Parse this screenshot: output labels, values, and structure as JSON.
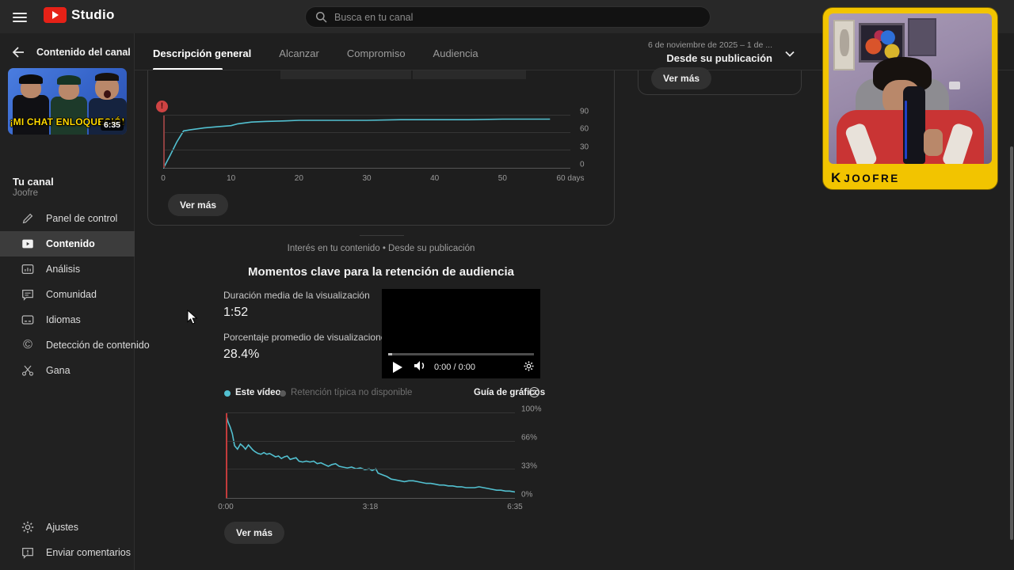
{
  "topbar": {
    "brand": "Studio",
    "search_placeholder": "Busca en tu canal"
  },
  "sidebar": {
    "back_title": "Contenido del canal",
    "video_thumb": {
      "overlay_text": "¡MI CHAT ENLOQUECIÓ!",
      "duration": "6:35"
    },
    "channel_label": "Tu canal",
    "channel_name": "Joofre",
    "items": [
      {
        "label": "Panel de control",
        "icon": "pencil-icon",
        "active": false
      },
      {
        "label": "Contenido",
        "icon": "content-icon",
        "active": true
      },
      {
        "label": "Análisis",
        "icon": "analytics-icon",
        "active": false
      },
      {
        "label": "Comunidad",
        "icon": "community-icon",
        "active": false
      },
      {
        "label": "Idiomas",
        "icon": "subtitles-icon",
        "active": false
      },
      {
        "label": "Detección de contenido",
        "icon": "copyright-icon",
        "active": false
      },
      {
        "label": "Gana",
        "icon": "scissors-icon",
        "active": false
      }
    ],
    "footer_items": [
      {
        "label": "Ajustes",
        "icon": "gear-icon"
      },
      {
        "label": "Enviar comentarios",
        "icon": "feedback-icon"
      }
    ]
  },
  "main": {
    "tabs": [
      {
        "label": "Descripción general",
        "active": true
      },
      {
        "label": "Alcanzar",
        "active": false
      },
      {
        "label": "Compromiso",
        "active": false
      },
      {
        "label": "Audiencia",
        "active": false
      }
    ],
    "date_range": {
      "line1": "6 de noviembre de 2025 – 1 de ...",
      "line2": "Desde su publicación"
    },
    "views_card": {
      "see_more": "Ver más"
    },
    "summary_card": {
      "see_more": "Ver más"
    },
    "section": {
      "breadcrumb": "Interés en tu contenido • Desde su publicación",
      "title": "Momentos clave para la retención de audiencia",
      "metrics": [
        {
          "label": "Duración media de la visualización",
          "value": "1:52"
        },
        {
          "label": "Porcentaje promedio de visualizaciones",
          "value": "28.4%"
        }
      ],
      "player": {
        "time": "0:00 / 0:00"
      },
      "legend": {
        "this_video": "Este vídeo",
        "typical_unavailable": "Retención típica no disponible",
        "chart_guide": "Guía de gráficos"
      },
      "see_more": "Ver más"
    }
  },
  "webcam": {
    "watermark_initial": "K",
    "watermark": "JOOFRE"
  },
  "colors": {
    "accent_cyan": "#52c0d0",
    "alert_red": "#cf4343",
    "overlay_yellow": "#f2c400",
    "thumb_text_yellow": "#ffd900"
  },
  "chart_data": [
    {
      "id": "views-since-publication",
      "type": "line",
      "title": "",
      "xlabel": "days since publication",
      "ylabel": "",
      "xlim": [
        0,
        60
      ],
      "ylim": [
        0,
        90
      ],
      "xticks": [
        "0",
        "10",
        "20",
        "30",
        "40",
        "50",
        "60 days"
      ],
      "yticks": [
        "0",
        "30",
        "60",
        "90"
      ],
      "line_color": "#52c0d0",
      "marker_color": "#8f4040",
      "marker_x": 0,
      "grid": true,
      "legend_position": "none",
      "points": [
        [
          0,
          0
        ],
        [
          1,
          22
        ],
        [
          2,
          45
        ],
        [
          3,
          64
        ],
        [
          4,
          66
        ],
        [
          6,
          69
        ],
        [
          8,
          71
        ],
        [
          10,
          73
        ],
        [
          11,
          76
        ],
        [
          13,
          79
        ],
        [
          15,
          80
        ],
        [
          18,
          81
        ],
        [
          20,
          82
        ],
        [
          25,
          82
        ],
        [
          30,
          82
        ],
        [
          35,
          83
        ],
        [
          40,
          83
        ],
        [
          45,
          83
        ],
        [
          50,
          84
        ],
        [
          57,
          84
        ]
      ]
    },
    {
      "id": "audience-retention",
      "type": "line",
      "title": "Momentos clave para la retención de audiencia",
      "xlabel": "video time",
      "ylabel": "percent of viewers",
      "xlim": [
        0,
        395
      ],
      "ylim": [
        0,
        100
      ],
      "xticks": [
        "0:00",
        "3:18",
        "6:35"
      ],
      "yticks": [
        "0%",
        "33%",
        "66%",
        "100%"
      ],
      "line_color": "#52c0d0",
      "marker_color": "#c23b3b",
      "marker_x": 0,
      "grid": true,
      "legend_position": "top-left",
      "series_name": "Este vídeo",
      "points": [
        [
          0,
          100
        ],
        [
          3,
          90
        ],
        [
          6,
          84
        ],
        [
          9,
          76
        ],
        [
          12,
          62
        ],
        [
          16,
          58
        ],
        [
          20,
          64
        ],
        [
          24,
          61
        ],
        [
          27,
          58
        ],
        [
          31,
          63
        ],
        [
          34,
          60
        ],
        [
          37,
          57
        ],
        [
          40,
          55
        ],
        [
          44,
          53
        ],
        [
          48,
          52
        ],
        [
          52,
          54
        ],
        [
          56,
          52
        ],
        [
          60,
          53
        ],
        [
          64,
          51
        ],
        [
          68,
          49
        ],
        [
          72,
          50
        ],
        [
          76,
          47
        ],
        [
          80,
          49
        ],
        [
          84,
          50
        ],
        [
          88,
          46
        ],
        [
          92,
          47
        ],
        [
          96,
          48
        ],
        [
          100,
          44
        ],
        [
          105,
          43
        ],
        [
          110,
          44
        ],
        [
          115,
          43
        ],
        [
          120,
          44
        ],
        [
          125,
          41
        ],
        [
          130,
          42
        ],
        [
          135,
          40
        ],
        [
          140,
          38
        ],
        [
          145,
          40
        ],
        [
          150,
          41
        ],
        [
          155,
          38
        ],
        [
          160,
          37
        ],
        [
          166,
          36
        ],
        [
          172,
          37
        ],
        [
          178,
          35
        ],
        [
          184,
          36
        ],
        [
          190,
          34
        ],
        [
          196,
          35
        ],
        [
          200,
          33
        ],
        [
          205,
          35
        ],
        [
          208,
          30
        ],
        [
          214,
          28
        ],
        [
          220,
          26
        ],
        [
          226,
          23
        ],
        [
          232,
          22
        ],
        [
          238,
          21
        ],
        [
          244,
          20
        ],
        [
          250,
          21
        ],
        [
          256,
          21
        ],
        [
          262,
          20
        ],
        [
          268,
          19
        ],
        [
          274,
          18
        ],
        [
          280,
          18
        ],
        [
          286,
          17
        ],
        [
          292,
          16
        ],
        [
          298,
          16
        ],
        [
          304,
          15
        ],
        [
          310,
          15
        ],
        [
          316,
          14
        ],
        [
          322,
          14
        ],
        [
          328,
          13
        ],
        [
          334,
          13
        ],
        [
          340,
          13
        ],
        [
          346,
          14
        ],
        [
          352,
          13
        ],
        [
          358,
          12
        ],
        [
          364,
          11
        ],
        [
          370,
          10
        ],
        [
          376,
          10
        ],
        [
          382,
          9
        ],
        [
          388,
          9
        ],
        [
          395,
          8
        ]
      ]
    }
  ]
}
